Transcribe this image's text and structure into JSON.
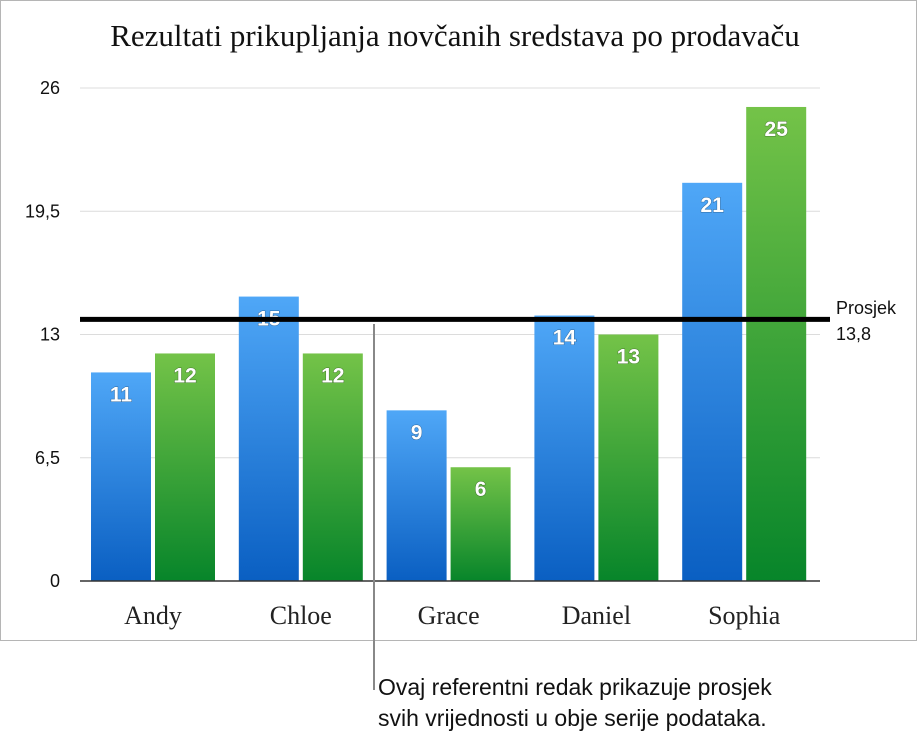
{
  "chart_data": {
    "type": "bar",
    "title": "Rezultati prikupljanja novčanih sredstava po prodavaču",
    "categories": [
      "Andy",
      "Chloe",
      "Grace",
      "Daniel",
      "Sophia"
    ],
    "series": [
      {
        "values": [
          11,
          15,
          9,
          14,
          21
        ],
        "color": "#1a75d6"
      },
      {
        "values": [
          12,
          12,
          6,
          13,
          25
        ],
        "color": "#2e9a35"
      }
    ],
    "ylim": [
      0,
      26
    ],
    "yticks": [
      "0",
      "6,5",
      "13",
      "19,5",
      "26"
    ],
    "ytick_values": [
      0,
      6.5,
      13,
      19.5,
      26
    ],
    "grid": true,
    "reference_line": {
      "label": "Prosjek",
      "value_label": "13,8",
      "value": 13.8
    },
    "annotation": {
      "line1": "Ovaj referentni redak prikazuje prosjek",
      "line2": "svih vrijednosti u obje serije podataka."
    }
  }
}
